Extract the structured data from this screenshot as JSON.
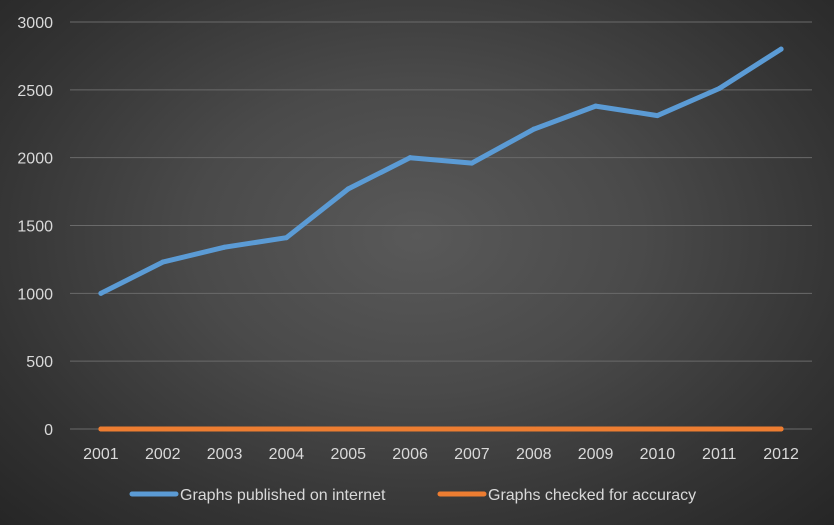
{
  "chart_data": {
    "type": "line",
    "title": "",
    "xlabel": "",
    "ylabel": "",
    "categories": [
      "2001",
      "2002",
      "2003",
      "2004",
      "2005",
      "2006",
      "2007",
      "2008",
      "2009",
      "2010",
      "2011",
      "2012"
    ],
    "series": [
      {
        "name": "Graphs published on internet",
        "color": "#5b9bd5",
        "values": [
          1000,
          1230,
          1340,
          1410,
          1770,
          2000,
          1960,
          2210,
          2380,
          2310,
          2510,
          2800
        ]
      },
      {
        "name": "Graphs checked for accuracy",
        "color": "#ed7d31",
        "values": [
          0,
          0,
          0,
          0,
          0,
          0,
          0,
          0,
          0,
          0,
          0,
          0
        ]
      }
    ],
    "ylim": [
      0,
      3000
    ],
    "yticks": [
      0,
      500,
      1000,
      1500,
      2000,
      2500,
      3000
    ],
    "ytick_labels": [
      "0",
      "500",
      "1000",
      "1500",
      "2000",
      "2500",
      "3000"
    ],
    "grid": true,
    "legend_position": "bottom"
  }
}
